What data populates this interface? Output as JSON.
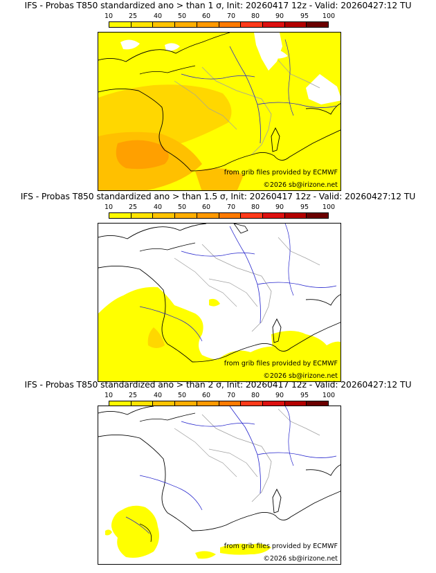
{
  "colorbar": {
    "ticks": [
      "10",
      "25",
      "40",
      "50",
      "60",
      "70",
      "80",
      "90",
      "95",
      "100"
    ],
    "colors": [
      "#fffb00",
      "#ffe400",
      "#ffc400",
      "#ffae00",
      "#ff9900",
      "#ff7a00",
      "#ff3a1a",
      "#dd1010",
      "#b30000",
      "#6b0000"
    ]
  },
  "panels": [
    {
      "title": "IFS - Probas T850  standardized ano > than 1 σ, Init: 20260417 12z - Valid: 20260427:12 TU",
      "credit_source": "from grib files provided by ECMWF",
      "credit_copyright": "©2026 sb@irizone.net"
    },
    {
      "title": "IFS - Probas T850  standardized ano > than 1.5 σ, Init: 20260417 12z - Valid: 20260427:12 TU",
      "credit_source": "from grib files provided by ECMWF",
      "credit_copyright": "©2026 sb@irizone.net"
    },
    {
      "title": "IFS - Probas T850  standardized ano > than 2 σ, Init: 20260417 12z - Valid: 20260427:12 TU",
      "credit_source": "from grib files provided by ECMWF",
      "credit_copyright": "©2026 sb@irizone.net"
    }
  ],
  "map_colors": {
    "yellow": "#ffff00",
    "light_orange": "#ffd700",
    "orange": "#ffc000",
    "deep_orange": "#ffa000",
    "coast": "#000000",
    "rivers": "#2222cc",
    "borders": "#a0a0a0"
  }
}
